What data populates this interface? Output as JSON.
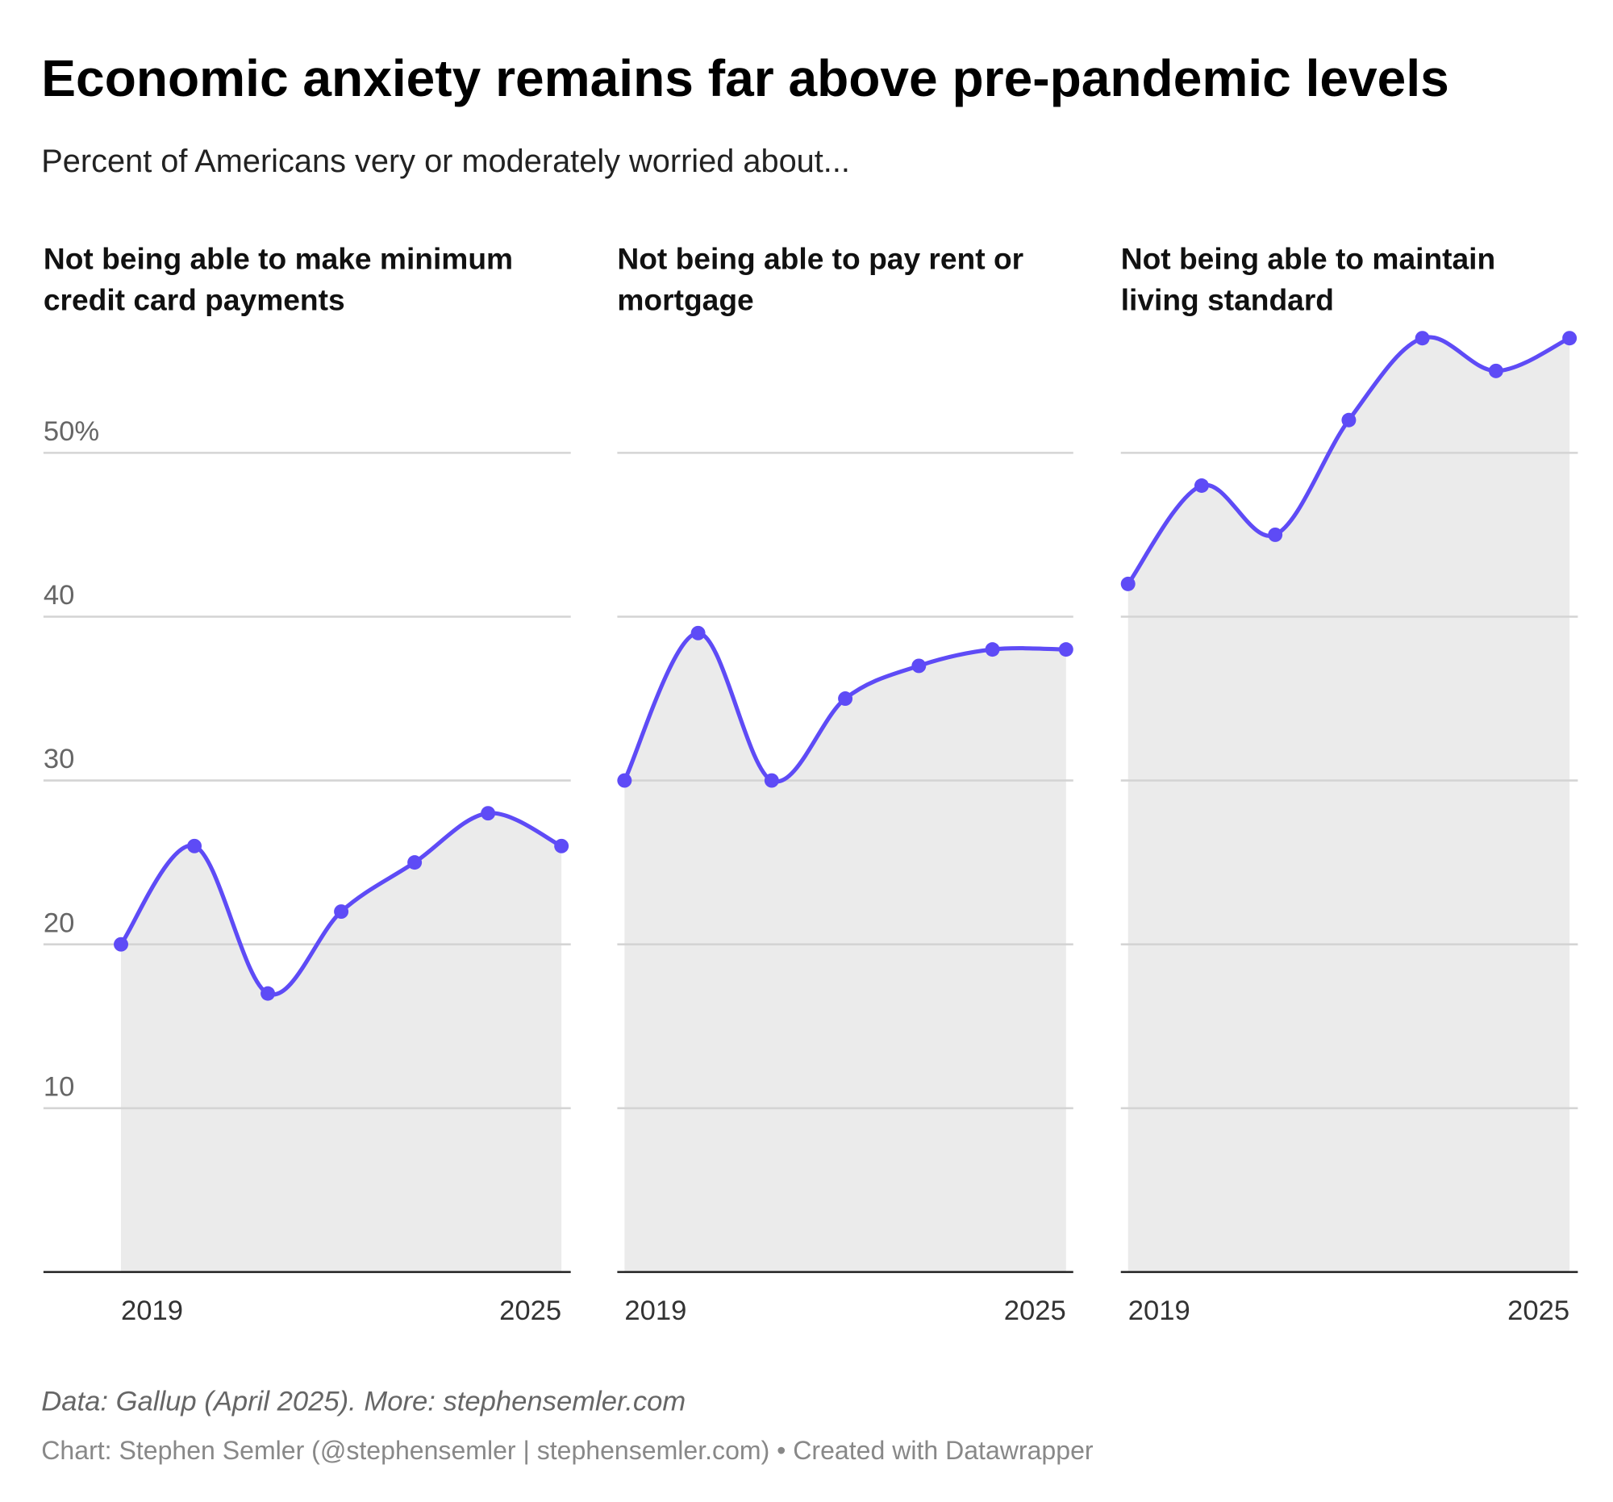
{
  "title": "Economic anxiety remains far above pre-pandemic levels",
  "subtitle": "Percent of Americans very or moderately worried about...",
  "chart_data": [
    {
      "type": "area",
      "title": [
        "Not being able to make minimum",
        "credit card payments"
      ],
      "x": [
        2019,
        2020,
        2021,
        2022,
        2023,
        2024,
        2025
      ],
      "values": [
        20,
        26,
        17,
        22,
        25,
        28,
        26
      ],
      "color": "#5e4bf6",
      "fill": "#ebebeb",
      "xlim": [
        2019,
        2025
      ],
      "xticks": [
        2019,
        2025
      ],
      "ylim": [
        0,
        57
      ],
      "yticks": [
        10,
        20,
        30,
        40,
        {
          "value": 50,
          "label": "50%"
        }
      ],
      "ytick_labels": true,
      "grid": true
    },
    {
      "type": "area",
      "title": [
        "Not being able to pay rent or",
        "mortgage"
      ],
      "x": [
        2019,
        2020,
        2021,
        2022,
        2023,
        2024,
        2025
      ],
      "values": [
        30,
        39,
        30,
        35,
        37,
        38,
        38
      ],
      "color": "#5e4bf6",
      "fill": "#ebebeb",
      "xlim": [
        2019,
        2025
      ],
      "xticks": [
        2019,
        2025
      ],
      "ylim": [
        0,
        57
      ],
      "yticks": [
        10,
        20,
        30,
        40,
        50
      ],
      "ytick_labels": false,
      "grid": true
    },
    {
      "type": "area",
      "title": [
        "Not being able to maintain",
        "living standard"
      ],
      "x": [
        2019,
        2020,
        2021,
        2022,
        2023,
        2024,
        2025
      ],
      "values": [
        42,
        48,
        45,
        52,
        57,
        55,
        57
      ],
      "color": "#5e4bf6",
      "fill": "#ebebeb",
      "xlim": [
        2019,
        2025
      ],
      "xticks": [
        2019,
        2025
      ],
      "ylim": [
        0,
        57
      ],
      "yticks": [
        10,
        20,
        30,
        40,
        50
      ],
      "ytick_labels": false,
      "grid": true
    }
  ],
  "footer": {
    "source": "Data: Gallup (April 2025). More: stephensemler.com",
    "credit": "Chart: Stephen Semler (@stephensemler | stephensemler.com) • Created with Datawrapper"
  }
}
